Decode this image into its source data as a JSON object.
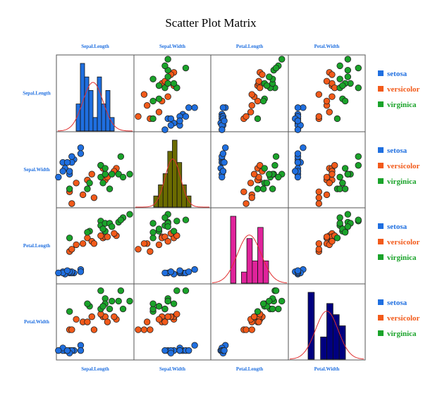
{
  "chart_data": {
    "type": "scatter-matrix",
    "title": "Scatter Plot Matrix",
    "variables": [
      "Sepal.Length",
      "Sepal.Width",
      "Petal.Length",
      "Petal.Width"
    ],
    "label_color": "#1f6fe0",
    "ranges": [
      [
        4.5,
        7.6
      ],
      [
        2.0,
        4.3
      ],
      [
        0.8,
        6.8
      ],
      [
        0.0,
        2.6
      ]
    ],
    "species": [
      {
        "name": "setosa",
        "color": "#1f6fe0"
      },
      {
        "name": "versicolor",
        "color": "#f25a1a"
      },
      {
        "name": "virginica",
        "color": "#1aa32a"
      }
    ],
    "points": [
      {
        "sp": 0,
        "v": [
          5.1,
          3.5,
          1.4,
          0.2
        ]
      },
      {
        "sp": 0,
        "v": [
          4.9,
          3.0,
          1.4,
          0.2
        ]
      },
      {
        "sp": 0,
        "v": [
          4.7,
          3.2,
          1.3,
          0.2
        ]
      },
      {
        "sp": 0,
        "v": [
          4.6,
          3.1,
          1.5,
          0.2
        ]
      },
      {
        "sp": 0,
        "v": [
          5.0,
          3.6,
          1.4,
          0.2
        ]
      },
      {
        "sp": 0,
        "v": [
          5.4,
          3.9,
          1.7,
          0.4
        ]
      },
      {
        "sp": 0,
        "v": [
          4.6,
          3.4,
          1.4,
          0.3
        ]
      },
      {
        "sp": 0,
        "v": [
          5.0,
          3.4,
          1.5,
          0.2
        ]
      },
      {
        "sp": 0,
        "v": [
          4.4,
          2.9,
          1.4,
          0.2
        ]
      },
      {
        "sp": 0,
        "v": [
          4.9,
          3.1,
          1.5,
          0.1
        ]
      },
      {
        "sp": 0,
        "v": [
          5.4,
          3.7,
          1.5,
          0.2
        ]
      },
      {
        "sp": 0,
        "v": [
          4.8,
          3.4,
          1.6,
          0.2
        ]
      },
      {
        "sp": 1,
        "v": [
          7.0,
          3.2,
          4.7,
          1.4
        ]
      },
      {
        "sp": 1,
        "v": [
          6.4,
          3.2,
          4.5,
          1.5
        ]
      },
      {
        "sp": 1,
        "v": [
          6.9,
          3.1,
          4.9,
          1.5
        ]
      },
      {
        "sp": 1,
        "v": [
          5.5,
          2.3,
          4.0,
          1.3
        ]
      },
      {
        "sp": 1,
        "v": [
          6.5,
          2.8,
          4.6,
          1.5
        ]
      },
      {
        "sp": 1,
        "v": [
          5.7,
          2.8,
          4.5,
          1.3
        ]
      },
      {
        "sp": 1,
        "v": [
          6.3,
          3.3,
          4.7,
          1.6
        ]
      },
      {
        "sp": 1,
        "v": [
          4.9,
          2.4,
          3.3,
          1.0
        ]
      },
      {
        "sp": 1,
        "v": [
          6.6,
          2.9,
          4.6,
          1.3
        ]
      },
      {
        "sp": 1,
        "v": [
          5.2,
          2.7,
          3.9,
          1.4
        ]
      },
      {
        "sp": 1,
        "v": [
          5.0,
          2.0,
          3.5,
          1.0
        ]
      },
      {
        "sp": 1,
        "v": [
          5.9,
          3.0,
          4.2,
          1.5
        ]
      },
      {
        "sp": 1,
        "v": [
          6.0,
          2.2,
          4.0,
          1.0
        ]
      },
      {
        "sp": 2,
        "v": [
          6.3,
          3.3,
          6.0,
          2.5
        ]
      },
      {
        "sp": 2,
        "v": [
          5.8,
          2.7,
          5.1,
          1.9
        ]
      },
      {
        "sp": 2,
        "v": [
          7.1,
          3.0,
          5.9,
          2.1
        ]
      },
      {
        "sp": 2,
        "v": [
          6.3,
          2.9,
          5.6,
          1.8
        ]
      },
      {
        "sp": 2,
        "v": [
          6.5,
          3.0,
          5.8,
          2.2
        ]
      },
      {
        "sp": 2,
        "v": [
          7.6,
          3.0,
          6.6,
          2.1
        ]
      },
      {
        "sp": 2,
        "v": [
          4.9,
          2.5,
          4.5,
          1.7
        ]
      },
      {
        "sp": 2,
        "v": [
          7.3,
          2.9,
          6.3,
          1.8
        ]
      },
      {
        "sp": 2,
        "v": [
          6.7,
          2.5,
          5.8,
          1.8
        ]
      },
      {
        "sp": 2,
        "v": [
          7.2,
          3.6,
          6.1,
          2.5
        ]
      },
      {
        "sp": 2,
        "v": [
          6.5,
          3.2,
          5.1,
          2.0
        ]
      },
      {
        "sp": 2,
        "v": [
          6.4,
          2.7,
          5.3,
          1.9
        ]
      },
      {
        "sp": 2,
        "v": [
          6.8,
          3.0,
          5.5,
          2.1
        ]
      },
      {
        "sp": 2,
        "v": [
          5.7,
          2.5,
          5.0,
          2.0
        ]
      }
    ],
    "histograms": [
      {
        "var": "Sepal.Length",
        "fill": "#1f6fe0",
        "counts": [
          2,
          5,
          4,
          3,
          1,
          4,
          2,
          3,
          1
        ]
      },
      {
        "var": "Sepal.Width",
        "fill": "#6b6b00",
        "counts": [
          1,
          2,
          3,
          5,
          6,
          4,
          2,
          1
        ]
      },
      {
        "var": "Petal.Length",
        "fill": "#e0239b",
        "counts": [
          6,
          0,
          1,
          4,
          2,
          5,
          2
        ]
      },
      {
        "var": "Petal.Width",
        "fill": "#000080",
        "counts": [
          6,
          0,
          2,
          5,
          4,
          3
        ]
      }
    ],
    "density_color": "#e03030",
    "grid": false,
    "legend_position": "right"
  }
}
